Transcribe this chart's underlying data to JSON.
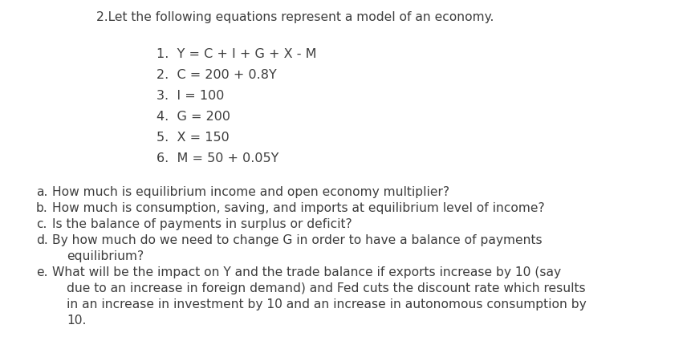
{
  "background_color": "#ffffff",
  "text_color": "#3d3d3d",
  "title": "2.Let the following equations represent a model of an economy.",
  "equations": [
    "1.  Y = C + I + G + X - M",
    "2.  C = 200 + 0.8Y",
    "3.  I = 100",
    "4.  G = 200",
    "5.  X = 150",
    "6.  M = 50 + 0.05Y"
  ],
  "questions": [
    {
      "label": "a.",
      "lines": [
        "How much is equilibrium income and open economy multiplier?"
      ]
    },
    {
      "label": "b.",
      "lines": [
        "How much is consumption, saving, and imports at equilibrium level of income?"
      ]
    },
    {
      "label": "c.",
      "lines": [
        "Is the balance of payments in surplus or deficit?"
      ]
    },
    {
      "label": "d.",
      "lines": [
        "By how much do we need to change G in order to have a balance of payments",
        "equilibrium?"
      ]
    },
    {
      "label": "e.",
      "lines": [
        "What will be the impact on Y and the trade balance if exports increase by 10 (say",
        "due to an increase in foreign demand) and Fed cuts the discount rate which results",
        "in an increase in investment by 10 and an increase in autonomous consumption by",
        "10."
      ]
    }
  ],
  "title_fontsize": 11.2,
  "eq_fontsize": 11.5,
  "q_fontsize": 11.2,
  "font_family": "DejaVu Sans"
}
